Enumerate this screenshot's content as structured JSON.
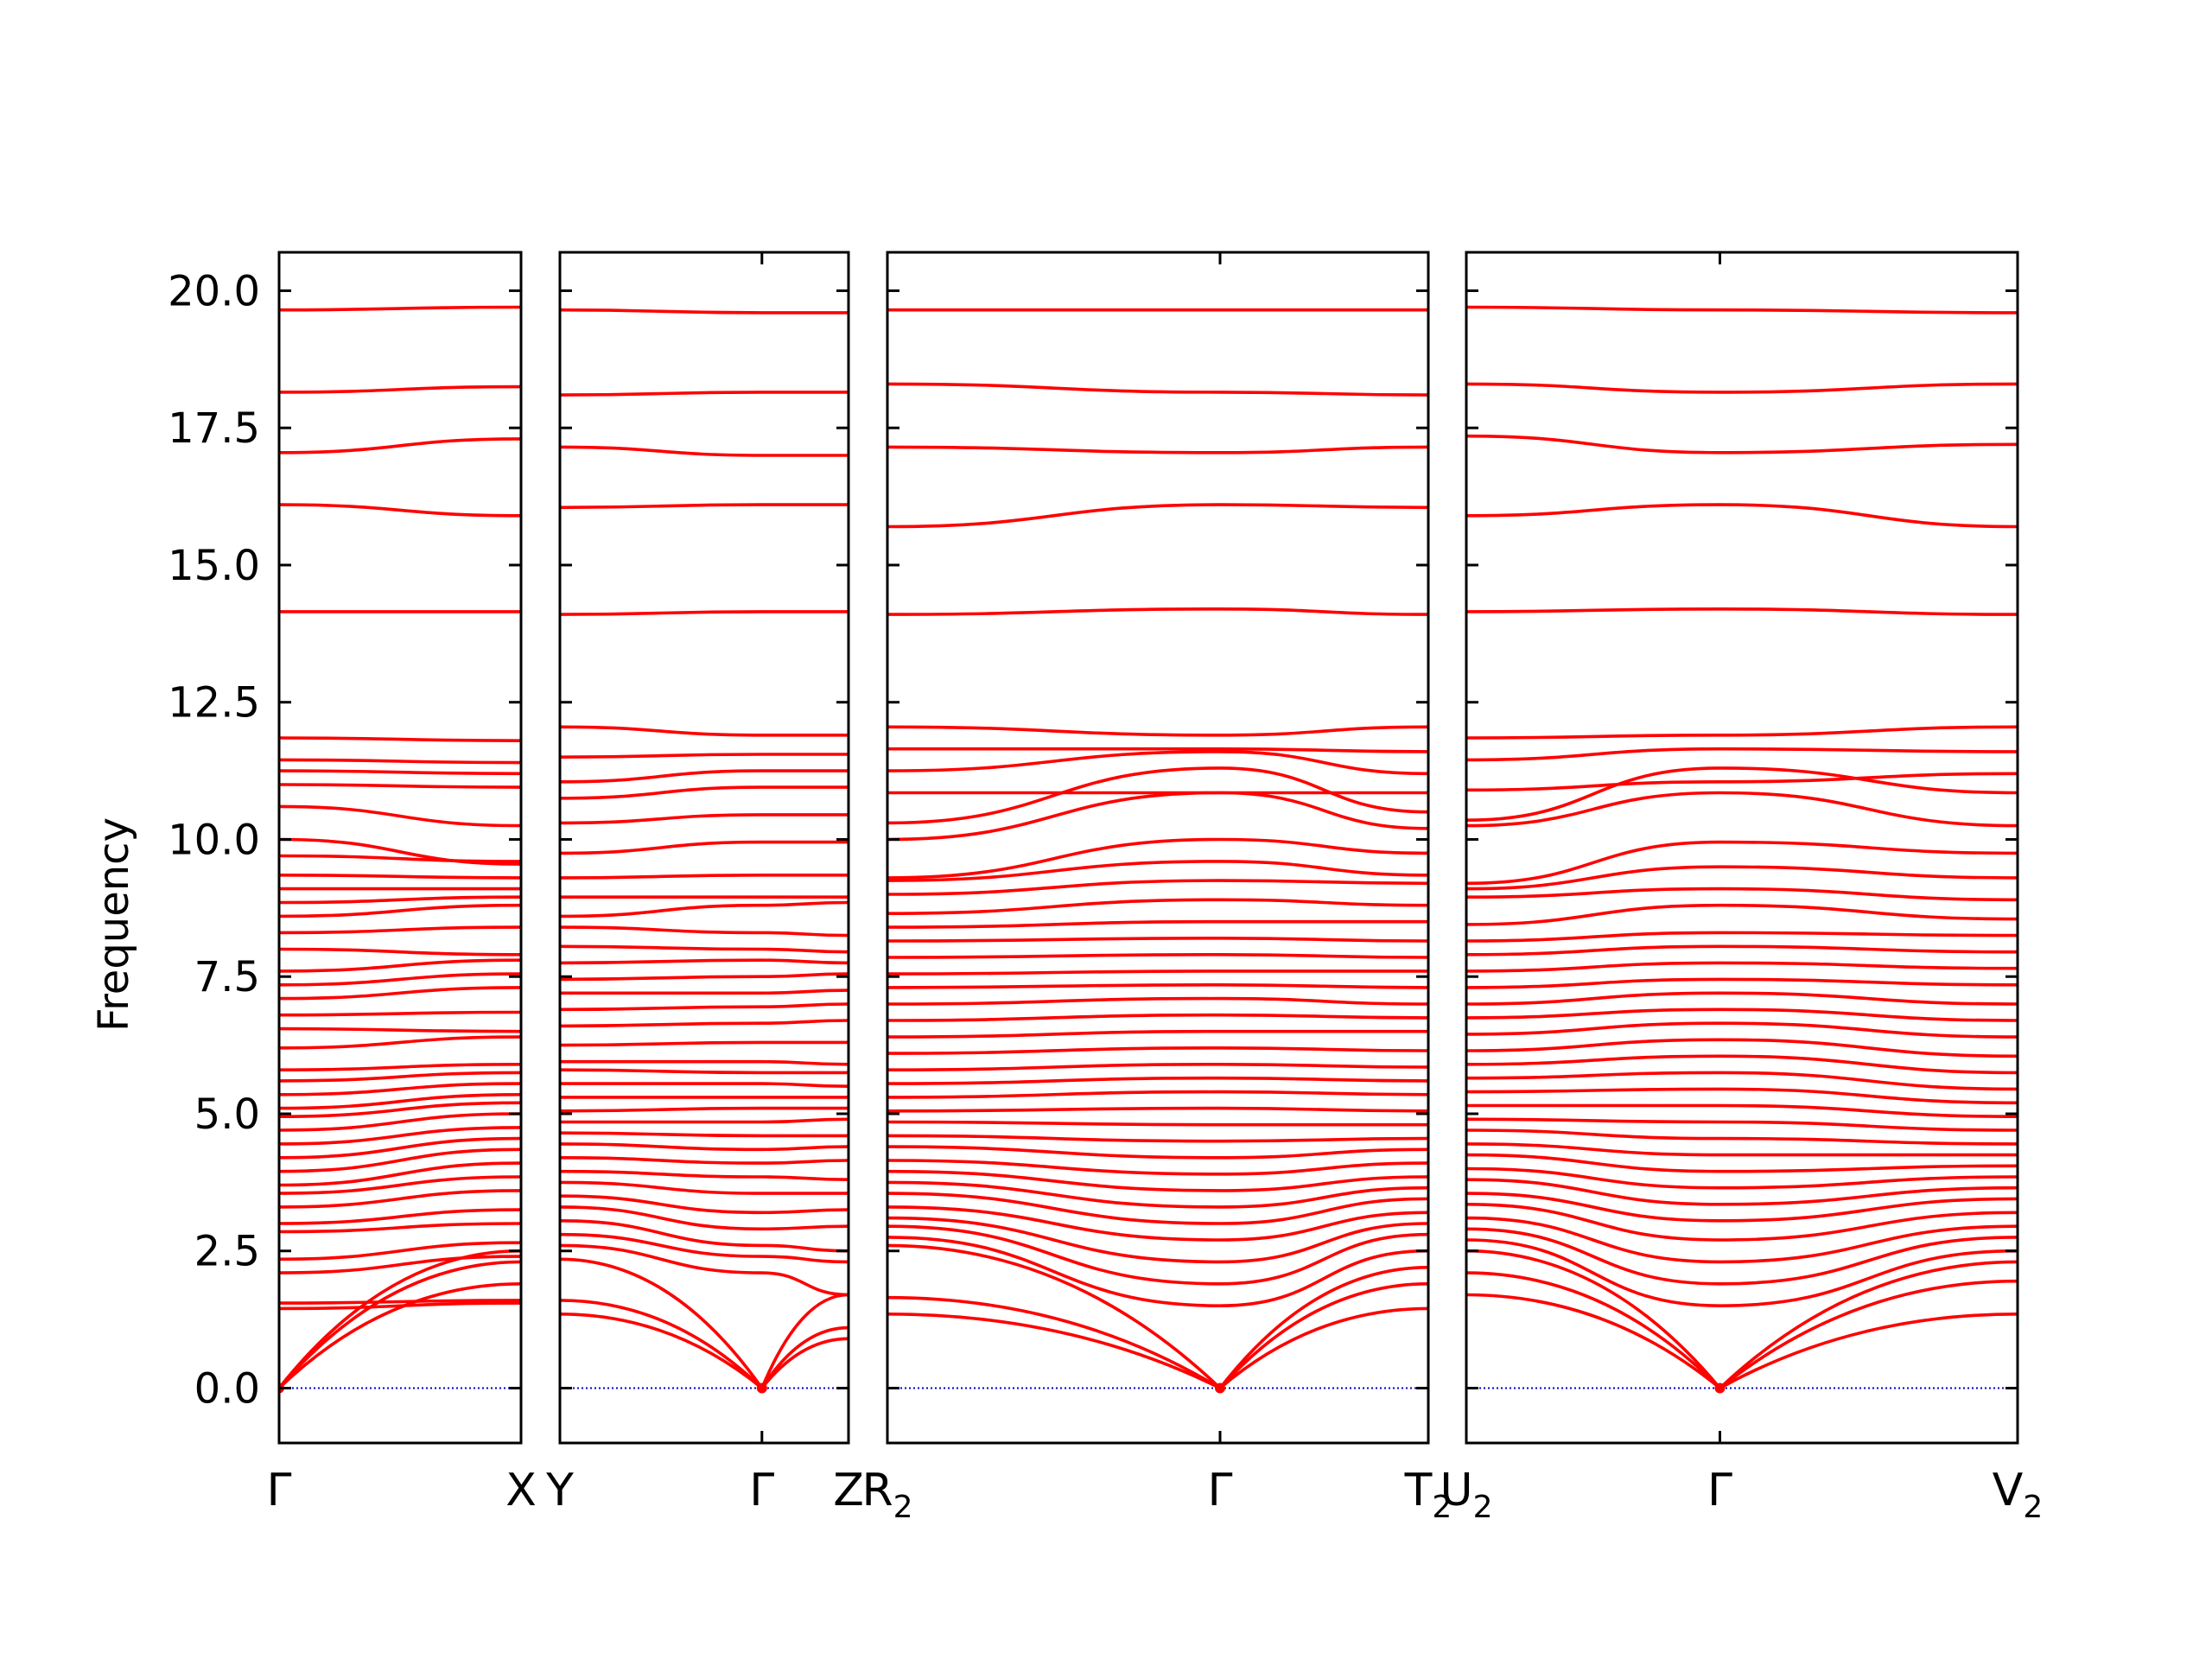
{
  "chart_data": {
    "type": "line",
    "title": "",
    "xlabel": "",
    "ylabel": "Frequency",
    "ylim": [
      -1.0,
      20.7
    ],
    "yticks": [
      "0.0",
      "2.5",
      "5.0",
      "7.5",
      "10.0",
      "12.5",
      "15.0",
      "17.5",
      "20.0"
    ],
    "grid": false,
    "colors": {
      "bands": "#ff0000",
      "zero_line": "#0000cc",
      "axes": "#000000"
    },
    "panels": [
      {
        "id": "panel-1",
        "kpoints": [
          {
            "label": "Γ",
            "sub": "",
            "x": 0.0
          },
          {
            "label": "X",
            "sub": "",
            "x": 1.0
          }
        ],
        "acoustic": [
          [
            0.0,
            1.9
          ],
          [
            0.0,
            2.3
          ],
          [
            0.0,
            2.5
          ]
        ],
        "bands": [
          [
            1.45,
            1.55
          ],
          [
            1.55,
            1.6
          ],
          [
            2.1,
            2.4
          ],
          [
            2.35,
            2.65
          ],
          [
            2.85,
            3.0
          ],
          [
            3.0,
            3.25
          ],
          [
            3.3,
            3.6
          ],
          [
            3.55,
            3.85
          ],
          [
            3.7,
            4.1
          ],
          [
            3.95,
            4.35
          ],
          [
            4.2,
            4.55
          ],
          [
            4.45,
            4.75
          ],
          [
            4.7,
            5.0
          ],
          [
            4.95,
            5.2
          ],
          [
            5.1,
            5.35
          ],
          [
            5.35,
            5.55
          ],
          [
            5.6,
            5.75
          ],
          [
            5.8,
            5.9
          ],
          [
            6.2,
            6.4
          ],
          [
            6.55,
            6.5
          ],
          [
            6.8,
            6.85
          ],
          [
            7.1,
            7.3
          ],
          [
            7.35,
            7.55
          ],
          [
            7.6,
            7.8
          ],
          [
            8.0,
            7.9
          ],
          [
            8.3,
            8.4
          ],
          [
            8.6,
            8.8
          ],
          [
            8.85,
            8.95
          ],
          [
            9.1,
            9.1
          ],
          [
            9.35,
            9.3
          ],
          [
            9.7,
            9.6
          ],
          [
            10.0,
            9.55
          ],
          [
            10.6,
            10.25
          ],
          [
            11.0,
            10.95
          ],
          [
            11.25,
            11.2
          ],
          [
            11.45,
            11.4
          ],
          [
            11.85,
            11.8
          ],
          [
            14.15,
            14.15
          ],
          [
            16.1,
            15.9
          ],
          [
            17.05,
            17.3
          ],
          [
            18.15,
            18.25
          ],
          [
            19.65,
            19.7
          ]
        ]
      },
      {
        "id": "panel-2",
        "kpoints": [
          {
            "label": "Y",
            "sub": "",
            "x": 0.0
          },
          {
            "label": "Γ",
            "sub": "",
            "x": 0.7
          },
          {
            "label": "Z",
            "sub": "",
            "x": 1.0
          }
        ],
        "acoustic": [
          [
            1.35,
            0.0,
            0.9
          ],
          [
            1.6,
            0.0,
            1.1
          ],
          [
            2.35,
            0.0,
            1.7
          ]
        ],
        "bands": [
          [
            2.6,
            2.1,
            1.7
          ],
          [
            2.8,
            2.4,
            2.3
          ],
          [
            3.05,
            2.6,
            2.5
          ],
          [
            3.3,
            2.9,
            2.95
          ],
          [
            3.5,
            3.2,
            3.25
          ],
          [
            3.75,
            3.55,
            3.55
          ],
          [
            3.95,
            3.85,
            3.8
          ],
          [
            4.2,
            4.1,
            4.15
          ],
          [
            4.45,
            4.35,
            4.4
          ],
          [
            4.65,
            4.6,
            4.6
          ],
          [
            4.85,
            4.85,
            4.9
          ],
          [
            5.05,
            5.1,
            5.1
          ],
          [
            5.3,
            5.3,
            5.3
          ],
          [
            5.55,
            5.55,
            5.5
          ],
          [
            5.8,
            5.75,
            5.75
          ],
          [
            5.95,
            5.95,
            5.9
          ],
          [
            6.25,
            6.3,
            6.3
          ],
          [
            6.6,
            6.65,
            6.7
          ],
          [
            6.9,
            6.95,
            7.0
          ],
          [
            7.2,
            7.2,
            7.25
          ],
          [
            7.45,
            7.5,
            7.55
          ],
          [
            7.75,
            7.8,
            7.75
          ],
          [
            8.05,
            8.0,
            7.95
          ],
          [
            8.4,
            8.3,
            8.25
          ],
          [
            8.6,
            8.8,
            8.85
          ],
          [
            8.95,
            8.95,
            8.95
          ],
          [
            9.3,
            9.35,
            9.35
          ],
          [
            9.75,
            9.95,
            9.95
          ],
          [
            10.3,
            10.45,
            10.45
          ],
          [
            10.75,
            10.95,
            10.95
          ],
          [
            11.05,
            11.25,
            11.25
          ],
          [
            11.5,
            11.55,
            11.55
          ],
          [
            12.05,
            11.9,
            11.9
          ],
          [
            14.1,
            14.15,
            14.15
          ],
          [
            16.05,
            16.1,
            16.1
          ],
          [
            17.15,
            17.0,
            17.0
          ],
          [
            18.1,
            18.15,
            18.15
          ],
          [
            19.65,
            19.6,
            19.6
          ]
        ]
      },
      {
        "id": "panel-3",
        "kpoints": [
          {
            "label": "R",
            "sub": "2",
            "x": 0.0
          },
          {
            "label": "Γ",
            "sub": "",
            "x": 0.615
          },
          {
            "label": "T",
            "sub": "2",
            "x": 1.0
          }
        ],
        "acoustic": [
          [
            1.35,
            0.0,
            1.45
          ],
          [
            1.65,
            0.0,
            1.9
          ],
          [
            2.6,
            0.0,
            2.2
          ]
        ],
        "bands": [
          [
            2.75,
            1.5,
            2.5
          ],
          [
            2.95,
            1.9,
            2.8
          ],
          [
            3.1,
            2.3,
            3.0
          ],
          [
            3.3,
            2.7,
            3.2
          ],
          [
            3.55,
            3.0,
            3.45
          ],
          [
            3.75,
            3.3,
            3.65
          ],
          [
            3.95,
            3.6,
            3.85
          ],
          [
            4.15,
            3.9,
            4.1
          ],
          [
            4.4,
            4.2,
            4.35
          ],
          [
            4.6,
            4.5,
            4.55
          ],
          [
            4.85,
            4.8,
            4.8
          ],
          [
            5.05,
            5.1,
            5.05
          ],
          [
            5.3,
            5.4,
            5.35
          ],
          [
            5.55,
            5.65,
            5.6
          ],
          [
            5.8,
            5.9,
            5.85
          ],
          [
            6.1,
            6.2,
            6.15
          ],
          [
            6.4,
            6.5,
            6.5
          ],
          [
            6.7,
            6.8,
            6.75
          ],
          [
            7.0,
            7.1,
            7.0
          ],
          [
            7.3,
            7.35,
            7.3
          ],
          [
            7.55,
            7.6,
            7.6
          ],
          [
            7.85,
            7.9,
            7.85
          ],
          [
            8.15,
            8.2,
            8.15
          ],
          [
            8.4,
            8.5,
            8.5
          ],
          [
            8.65,
            8.9,
            8.8
          ],
          [
            9.0,
            9.25,
            9.2
          ],
          [
            9.25,
            9.6,
            9.35
          ],
          [
            9.3,
            10.0,
            9.75
          ],
          [
            10.0,
            10.85,
            10.2
          ],
          [
            10.3,
            11.3,
            10.5
          ],
          [
            10.85,
            10.85,
            10.85
          ],
          [
            11.25,
            11.6,
            11.2
          ],
          [
            11.65,
            11.65,
            11.6
          ],
          [
            12.05,
            11.9,
            12.05
          ],
          [
            14.1,
            14.2,
            14.1
          ],
          [
            15.7,
            16.1,
            16.05
          ],
          [
            17.15,
            17.05,
            17.15
          ],
          [
            18.3,
            18.15,
            18.1
          ],
          [
            19.65,
            19.65,
            19.65
          ]
        ]
      },
      {
        "id": "panel-4",
        "kpoints": [
          {
            "label": "U",
            "sub": "2",
            "x": 0.0
          },
          {
            "label": "Γ",
            "sub": "",
            "x": 0.46
          },
          {
            "label": "V",
            "sub": "2",
            "x": 1.0
          }
        ],
        "acoustic": [
          [
            1.7,
            0.0,
            1.35
          ],
          [
            2.1,
            0.0,
            1.95
          ],
          [
            2.5,
            0.0,
            2.3
          ]
        ],
        "bands": [
          [
            2.7,
            1.5,
            2.5
          ],
          [
            2.9,
            1.9,
            2.75
          ],
          [
            3.1,
            2.3,
            2.95
          ],
          [
            3.35,
            2.7,
            3.2
          ],
          [
            3.55,
            3.05,
            3.45
          ],
          [
            3.8,
            3.35,
            3.65
          ],
          [
            4.0,
            3.65,
            3.85
          ],
          [
            4.25,
            3.95,
            4.05
          ],
          [
            4.45,
            4.25,
            4.25
          ],
          [
            4.7,
            4.55,
            4.45
          ],
          [
            4.9,
            4.85,
            4.7
          ],
          [
            5.15,
            5.15,
            4.95
          ],
          [
            5.4,
            5.45,
            5.2
          ],
          [
            5.65,
            5.75,
            5.45
          ],
          [
            5.9,
            6.05,
            5.75
          ],
          [
            6.15,
            6.35,
            6.05
          ],
          [
            6.45,
            6.65,
            6.4
          ],
          [
            6.75,
            6.9,
            6.7
          ],
          [
            7.0,
            7.2,
            7.0
          ],
          [
            7.3,
            7.45,
            7.35
          ],
          [
            7.6,
            7.75,
            7.65
          ],
          [
            7.9,
            8.05,
            7.95
          ],
          [
            8.15,
            8.3,
            8.25
          ],
          [
            8.45,
            8.8,
            8.55
          ],
          [
            8.95,
            9.1,
            8.9
          ],
          [
            9.1,
            9.5,
            9.3
          ],
          [
            9.2,
            9.95,
            9.75
          ],
          [
            10.25,
            10.85,
            10.25
          ],
          [
            10.35,
            11.3,
            10.85
          ],
          [
            10.9,
            11.05,
            11.2
          ],
          [
            11.45,
            11.65,
            11.6
          ],
          [
            11.85,
            11.9,
            12.05
          ],
          [
            14.15,
            14.2,
            14.1
          ],
          [
            15.9,
            16.1,
            15.7
          ],
          [
            17.35,
            17.05,
            17.2
          ],
          [
            18.3,
            18.15,
            18.3
          ],
          [
            19.7,
            19.65,
            19.6
          ]
        ]
      }
    ]
  }
}
